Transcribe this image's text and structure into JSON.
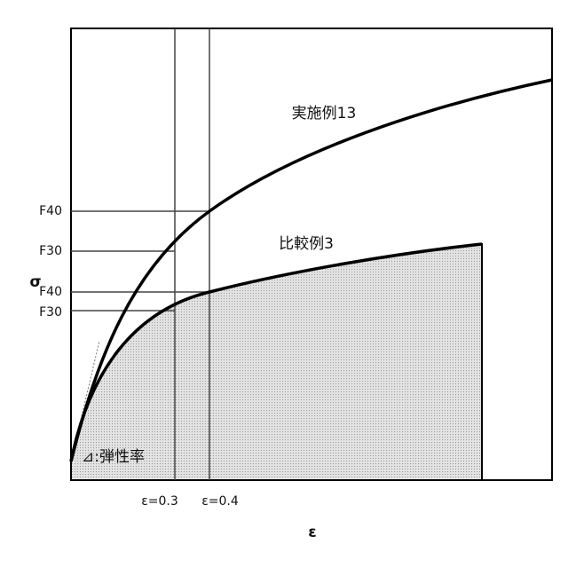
{
  "axes": {
    "y_label": "σ",
    "x_label": "ε"
  },
  "y_ticks": [
    "F40",
    "F30",
    "F40",
    "F30"
  ],
  "x_ticks": [
    "ε=0.3",
    "ε=0.4"
  ],
  "curves": [
    {
      "label": "実施例13"
    },
    {
      "label": "比較例3"
    }
  ],
  "annotation": "⊿:弾性率"
}
